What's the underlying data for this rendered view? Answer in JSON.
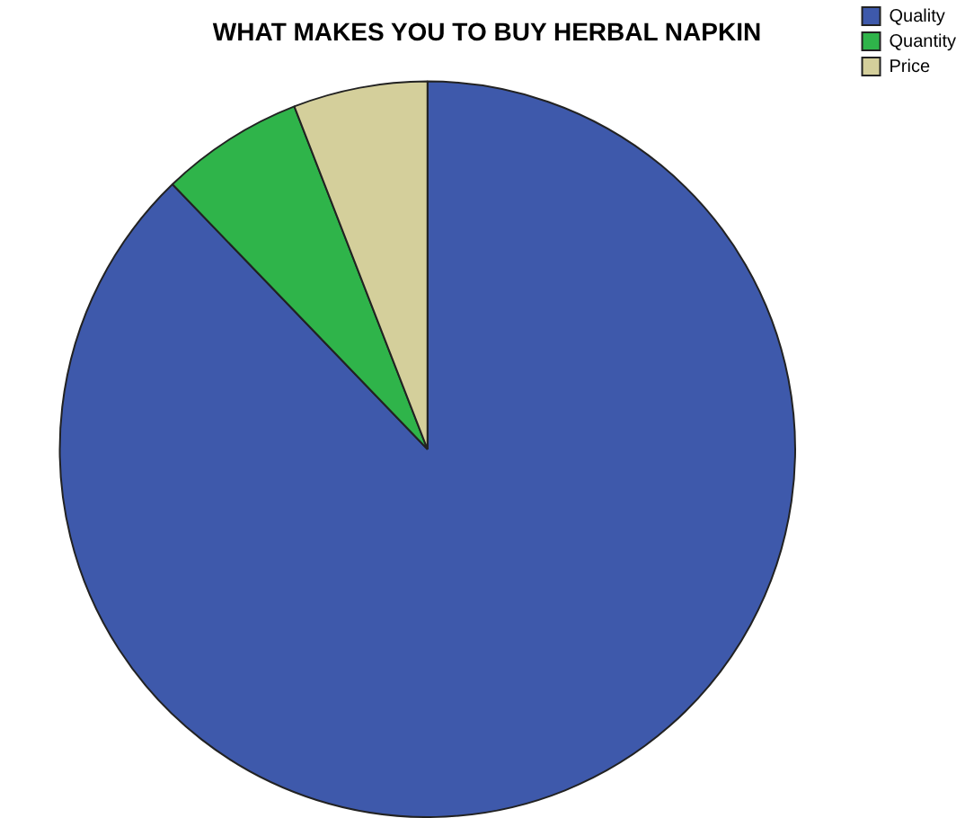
{
  "chart_data": {
    "type": "pie",
    "title": "WHAT MAKES YOU TO BUY HERBAL NAPKIN",
    "categories": [
      "Quality",
      "Quantity",
      "Price"
    ],
    "values": [
      87.8,
      6.3,
      5.9
    ],
    "colors": [
      "#3e59ab",
      "#2fb44a",
      "#d4cf9b"
    ],
    "legend": "top right"
  }
}
